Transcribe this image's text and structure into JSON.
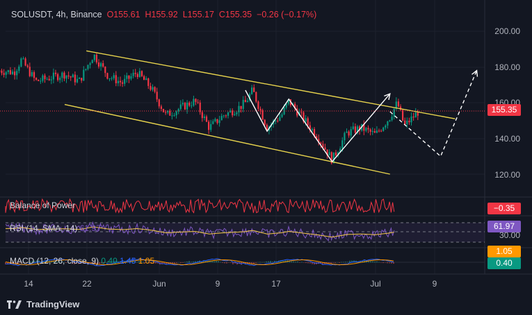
{
  "header": {
    "symbol_line": "SOLUSDT, 4h, Binance",
    "open": "O155.61",
    "high": "H155.92",
    "low": "L155.17",
    "close": "C155.35",
    "change": "−0.26 (−0.17%)"
  },
  "price_axis": {
    "labels": [
      "200.00",
      "180.00",
      "160.00",
      "140.00",
      "120.00"
    ],
    "current_price": "155.35"
  },
  "time_axis": {
    "labels": [
      "14",
      "22",
      "Jun",
      "9",
      "17",
      "Jul",
      "9"
    ]
  },
  "indicators": {
    "bop": {
      "label": "Balance of Power",
      "value": "−0.35",
      "color": "#f23645"
    },
    "rsi": {
      "label": "RSI (14, SMA, 14)",
      "value_inline": "61.97",
      "value": "61.97",
      "lower_band": "30.00",
      "color": "#7e57c2"
    },
    "macd": {
      "label": "MACD (12, 26, close, 9)",
      "macd_value": "0.40",
      "signal_value": "1.45",
      "hist_value": "1.05",
      "tag_top": "1.05",
      "tag_bottom": "0.40"
    }
  },
  "footer": {
    "brand": "TradingView"
  },
  "colors": {
    "background": "#131722",
    "up": "#089981",
    "down": "#f23645",
    "channel": "#e8d44d",
    "pattern": "#ffffff",
    "current_price_line": "#f23645"
  },
  "chart_data": {
    "type": "candlestick",
    "symbol": "SOLUSDT",
    "interval": "4h",
    "exchange": "Binance",
    "ylim": [
      108,
      216
    ],
    "x_ticks": [
      "14",
      "22",
      "Jun",
      "9",
      "17",
      "Jul",
      "9"
    ],
    "series": [
      {
        "name": "SOLUSDT",
        "close_path": [
          [
            "May 10",
            178
          ],
          [
            "May 12",
            177
          ],
          [
            "May 13",
            184
          ],
          [
            "May 15",
            172
          ],
          [
            "May 17",
            174
          ],
          [
            "May 19",
            176
          ],
          [
            "May 21",
            172
          ],
          [
            "May 23",
            187
          ],
          [
            "May 25",
            175
          ],
          [
            "May 27",
            171
          ],
          [
            "May 29",
            177
          ],
          [
            "May 31",
            168
          ],
          [
            "Jun 2",
            153
          ],
          [
            "Jun 4",
            157
          ],
          [
            "Jun 6",
            161
          ],
          [
            "Jun 8",
            146
          ],
          [
            "Jun 10",
            153
          ],
          [
            "Jun 12",
            157
          ],
          [
            "Jun 13",
            160
          ],
          [
            "Jun 14",
            167
          ],
          [
            "Jun 16",
            146
          ],
          [
            "Jun 18",
            153
          ],
          [
            "Jun 19",
            161
          ],
          [
            "Jun 21",
            151
          ],
          [
            "Jun 23",
            141
          ],
          [
            "Jun 25",
            128
          ],
          [
            "Jun 27",
            143
          ],
          [
            "Jun 29",
            146
          ],
          [
            "Jul 1",
            142
          ],
          [
            "Jul 3",
            152
          ],
          [
            "Jul 4",
            160
          ],
          [
            "Jul 5",
            147
          ],
          [
            "Jul 7",
            155.35
          ]
        ]
      }
    ],
    "overlays": {
      "channel_upper": [
        [
          "May 22",
          189
        ],
        [
          "Jul 12",
          151
        ]
      ],
      "channel_lower": [
        [
          "May 19",
          159
        ],
        [
          "Jul 3",
          120
        ]
      ],
      "projection_solid": [
        [
          "Jun 13",
          167
        ],
        [
          "Jun 16",
          144
        ],
        [
          "Jun 19",
          162
        ],
        [
          "Jun 25",
          127
        ],
        [
          "Jul 3",
          165
        ]
      ],
      "projection_dashed": [
        [
          "Jul 3",
          155
        ],
        [
          "Jul 10",
          130
        ],
        [
          "Jul 15",
          178
        ]
      ]
    }
  }
}
